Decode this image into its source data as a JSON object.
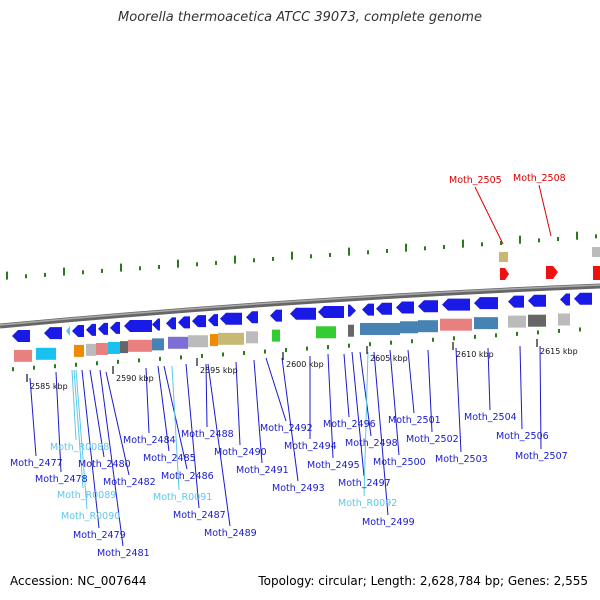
{
  "title": "Moorella thermoacetica ATCC 39073, complete genome",
  "footer": {
    "accession_label": "Accession:",
    "accession_value": "NC_007644",
    "topology_label": "Topology:",
    "topology_value": "circular",
    "length_label": "Length:",
    "length_value": "2,628,784 bp",
    "genes_label": "Genes:",
    "genes_value": "2,555"
  },
  "scale_ticks": [
    "2585 kbp",
    "2590 kbp",
    "2595 kbp",
    "2600 kbp",
    "2605 kbp",
    "2610 kbp",
    "2615 kbp"
  ],
  "colors": {
    "label_dark": "#1a1acc",
    "label_light": "#5bc8e8",
    "label_red": "#dd0000",
    "gene_blue": "#1a1ae6",
    "tick_green": "#2a7a1a",
    "backbone": "#777777"
  },
  "upper_labels": [
    "Moth_2505",
    "Moth_2508"
  ],
  "gene_labels": [
    "Moth_2477",
    "Moth_2478",
    "Moth_R0088",
    "Moth_2480",
    "Moth_R0089",
    "Moth_2482",
    "Moth_R0090",
    "Moth_2479",
    "Moth_2481",
    "Moth_2484",
    "Moth_2485",
    "Moth_2486",
    "Moth_R0091",
    "Moth_2487",
    "Moth_2488",
    "Moth_2489",
    "Moth_2490",
    "Moth_2491",
    "Moth_2492",
    "Moth_2493",
    "Moth_2494",
    "Moth_2495",
    "Moth_2496",
    "Moth_2497",
    "Moth_2498",
    "Moth_R0092",
    "Moth_2499",
    "Moth_2500",
    "Moth_2501",
    "Moth_2502",
    "Moth_2503",
    "Moth_2504",
    "Moth_2506",
    "Moth_2507"
  ]
}
